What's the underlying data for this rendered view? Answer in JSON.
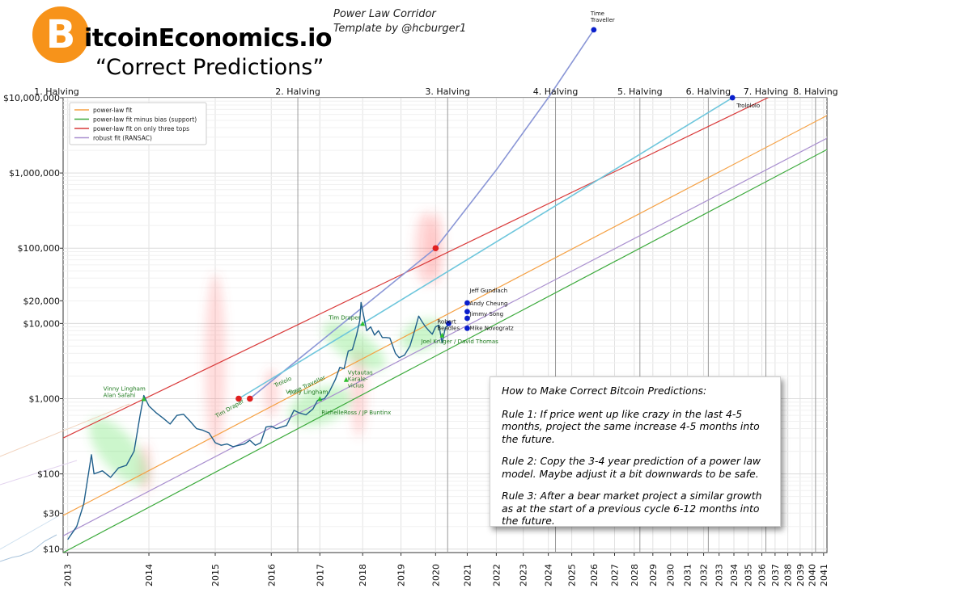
{
  "header": {
    "logo_symbol": "B",
    "brand": "itcoinEconomics.io",
    "subtitle": "“Correct Predictions”",
    "template_line1": "Power Law Corridor",
    "template_line2": "Template by @hcburger1"
  },
  "rules_box": {
    "title": "How to Make Correct Bitcoin Predictions:",
    "rule1": "Rule 1: If price went up like crazy in the last 4-5 months, project the same increase 4-5 months into the future.",
    "rule2": "Rule 2: Copy the 3-4 year prediction of a power law model. Maybe adjust it a bit downwards to be safe.",
    "rule3": "Rule 3: After a bear market project a similar growth as at the start of a previous cycle 6-12 months into the future."
  },
  "colors": {
    "orange": "#f5a043",
    "green": "#3caa3c",
    "red": "#d93a3a",
    "purple": "#a98fcf",
    "price": "#1f5f8b",
    "navy": "#0a1fcc",
    "time_line": "#8a96d6",
    "cyan_line": "#6ec6dc",
    "halo_red": "#ff5a5a",
    "halo_green": "#57e057",
    "label_green": "#1e7a1e"
  },
  "chart_data": {
    "type": "line",
    "title": "Power Law Corridor",
    "xscale": "log(days since 2009-01-03)",
    "yscale": "log",
    "xlim": [
      2012.95,
      2041.3
    ],
    "ylim": [
      9,
      10000000
    ],
    "x_ticks": [
      "2013",
      "2014",
      "2015",
      "2016",
      "2017",
      "2018",
      "2019",
      "2020",
      "2021",
      "2022",
      "2023",
      "2024",
      "2025",
      "2026",
      "2027",
      "2028",
      "2029",
      "2030",
      "2031",
      "2032",
      "2033",
      "2034",
      "2035",
      "2036",
      "2037",
      "2038",
      "2039",
      "2040",
      "2041"
    ],
    "y_ticks": [
      {
        "value": 10,
        "label": "$10"
      },
      {
        "value": 30,
        "label": "$30"
      },
      {
        "value": 100,
        "label": "$100"
      },
      {
        "value": 1000,
        "label": "$1,000"
      },
      {
        "value": 10000,
        "label": "$10,000"
      },
      {
        "value": 20000,
        "label": "$20,000"
      },
      {
        "value": 100000,
        "label": "$100,000"
      },
      {
        "value": 1000000,
        "label": "$1,000,000"
      },
      {
        "value": 10000000,
        "label": "$10,000,000"
      }
    ],
    "halvings": [
      {
        "label": "1. Halving",
        "year": 2012.9
      },
      {
        "label": "2. Halving",
        "year": 2016.53
      },
      {
        "label": "3. Halving",
        "year": 2020.37
      },
      {
        "label": "4. Halving",
        "year": 2024.3
      },
      {
        "label": "5. Halving",
        "year": 2028.3
      },
      {
        "label": "6. Halving",
        "year": 2032.3
      },
      {
        "label": "7. Halving",
        "year": 2036.3
      },
      {
        "label": "8. Halving",
        "year": 2040.3
      }
    ],
    "legend": {
      "position": "top-left",
      "entries": [
        {
          "label": "power-law fit",
          "color": "#f5a043"
        },
        {
          "label": "power-law fit minus bias (support)",
          "color": "#3caa3c"
        },
        {
          "label": "power-law fit on only three tops",
          "color": "#d93a3a"
        },
        {
          "label": "robust fit (RANSAC)",
          "color": "#a98fcf"
        }
      ]
    },
    "series": [
      {
        "name": "power-law fit",
        "color": "#f5a043",
        "points": [
          [
            2012.95,
            28
          ],
          [
            2041.3,
            5800000
          ]
        ]
      },
      {
        "name": "power-law fit minus bias (support)",
        "color": "#3caa3c",
        "points": [
          [
            2012.95,
            9
          ],
          [
            2041.3,
            2050000
          ]
        ]
      },
      {
        "name": "power-law fit on only three tops",
        "color": "#d93a3a",
        "points": [
          [
            2012.95,
            300
          ],
          [
            2041.3,
            24000000
          ]
        ]
      },
      {
        "name": "robust fit (RANSAC)",
        "color": "#a98fcf",
        "points": [
          [
            2012.95,
            15
          ],
          [
            2041.3,
            2900000
          ]
        ]
      },
      {
        "name": "Time Traveller projection",
        "color": "#8a96d6",
        "points": [
          [
            2015.6,
            1000
          ],
          [
            2020.0,
            100000
          ],
          [
            2022.0,
            1100000
          ],
          [
            2024.0,
            10000000
          ],
          [
            2026.0,
            80000000
          ]
        ]
      },
      {
        "name": "Trololo projection",
        "color": "#6ec6dc",
        "points": [
          [
            2015.4,
            1000
          ],
          [
            2018.0,
            10000
          ],
          [
            2033.9,
            10000000
          ]
        ]
      }
    ],
    "price": [
      [
        2013.0,
        13.4
      ],
      [
        2013.1,
        20
      ],
      [
        2013.18,
        40
      ],
      [
        2013.27,
        180
      ],
      [
        2013.3,
        100
      ],
      [
        2013.4,
        110
      ],
      [
        2013.5,
        90
      ],
      [
        2013.6,
        120
      ],
      [
        2013.7,
        130
      ],
      [
        2013.8,
        200
      ],
      [
        2013.88,
        600
      ],
      [
        2013.93,
        1100
      ],
      [
        2014.0,
        800
      ],
      [
        2014.1,
        650
      ],
      [
        2014.2,
        550
      ],
      [
        2014.3,
        460
      ],
      [
        2014.4,
        600
      ],
      [
        2014.5,
        620
      ],
      [
        2014.6,
        500
      ],
      [
        2014.7,
        400
      ],
      [
        2014.8,
        380
      ],
      [
        2014.9,
        350
      ],
      [
        2015.0,
        260
      ],
      [
        2015.1,
        240
      ],
      [
        2015.2,
        250
      ],
      [
        2015.3,
        230
      ],
      [
        2015.5,
        250
      ],
      [
        2015.6,
        280
      ],
      [
        2015.7,
        240
      ],
      [
        2015.8,
        260
      ],
      [
        2015.9,
        420
      ],
      [
        2016.0,
        430
      ],
      [
        2016.1,
        400
      ],
      [
        2016.3,
        440
      ],
      [
        2016.45,
        700
      ],
      [
        2016.55,
        650
      ],
      [
        2016.7,
        610
      ],
      [
        2016.85,
        730
      ],
      [
        2016.95,
        950
      ],
      [
        2017.1,
        1000
      ],
      [
        2017.2,
        1200
      ],
      [
        2017.35,
        1800
      ],
      [
        2017.45,
        2600
      ],
      [
        2017.55,
        2500
      ],
      [
        2017.65,
        4300
      ],
      [
        2017.75,
        4500
      ],
      [
        2017.85,
        7000
      ],
      [
        2017.93,
        11000
      ],
      [
        2017.96,
        19000
      ],
      [
        2018.02,
        13000
      ],
      [
        2018.1,
        8000
      ],
      [
        2018.2,
        9000
      ],
      [
        2018.3,
        7000
      ],
      [
        2018.4,
        8000
      ],
      [
        2018.5,
        6500
      ],
      [
        2018.6,
        6500
      ],
      [
        2018.7,
        6400
      ],
      [
        2018.85,
        4000
      ],
      [
        2018.95,
        3500
      ],
      [
        2019.1,
        3800
      ],
      [
        2019.25,
        5000
      ],
      [
        2019.4,
        8500
      ],
      [
        2019.5,
        12500
      ],
      [
        2019.6,
        10500
      ],
      [
        2019.7,
        9000
      ],
      [
        2019.8,
        8000
      ],
      [
        2019.9,
        7200
      ],
      [
        2020.0,
        9000
      ],
      [
        2020.1,
        9500
      ],
      [
        2020.2,
        5500
      ],
      [
        2020.3,
        8800
      ],
      [
        2020.4,
        9500
      ]
    ],
    "predictions_green": [
      {
        "label": "Vinny Lingham\nAlan Safahi",
        "year": 2013.93,
        "value": 1000
      },
      {
        "label": "Vinny Lingham",
        "year": 2017.0,
        "value": 1000
      },
      {
        "label": "Vytautas\nKarale-\nvicius",
        "year": 2017.6,
        "value": 1800
      },
      {
        "label": "RichelleRoss / JP Buntinx",
        "year": 2017.0,
        "value": 700
      },
      {
        "label": "Tim Draper",
        "year": 2018.0,
        "value": 10000
      },
      {
        "label": "Tim Draper",
        "year": 2015.3,
        "value": 500
      },
      {
        "label": "Joel Kruger / David Thomas",
        "year": 2020.2,
        "value": 7000
      },
      {
        "label": "Trololo",
        "year": 2016.0,
        "value": 1100
      },
      {
        "label": "Time Traveller",
        "year": 2016.2,
        "value": 900
      }
    ],
    "predictions_blue": [
      {
        "label": "Robert\nBeadles",
        "year": 2020.4,
        "value": 10000
      },
      {
        "label": "Jeff Gundlach",
        "year": 2021.0,
        "value": 15000
      },
      {
        "label": "Andy Cheung",
        "year": 2021.0,
        "value": 13000
      },
      {
        "label": "Jimmy Song",
        "year": 2021.0,
        "value": 12000
      },
      {
        "label": "Mike Novogratz",
        "year": 2021.0,
        "value": 10000
      },
      {
        "label": "Trolololo",
        "year": 2033.9,
        "value": 10000000
      },
      {
        "label": "Time\nTraveller",
        "year": 2026.0,
        "value": 80000000
      }
    ],
    "red_points": [
      {
        "year": 2015.4,
        "value": 1000
      },
      {
        "year": 2015.6,
        "value": 1000
      },
      {
        "year": 2020.0,
        "value": 100000
      }
    ],
    "halos_red": [
      {
        "year": 2015.0,
        "value": 3000
      },
      {
        "year": 2013.95,
        "value": 120
      },
      {
        "year": 2016.0,
        "value": 1200
      },
      {
        "year": 2017.9,
        "value": 1200
      },
      {
        "year": 2019.7,
        "value": 100000
      },
      {
        "year": 2020.0,
        "value": 100000
      }
    ],
    "halos_green": [
      {
        "year": 2013.6,
        "value": 200
      },
      {
        "year": 2017.0,
        "value": 800
      },
      {
        "year": 2017.8,
        "value": 5000
      },
      {
        "year": 2019.6,
        "value": 7000
      }
    ]
  }
}
